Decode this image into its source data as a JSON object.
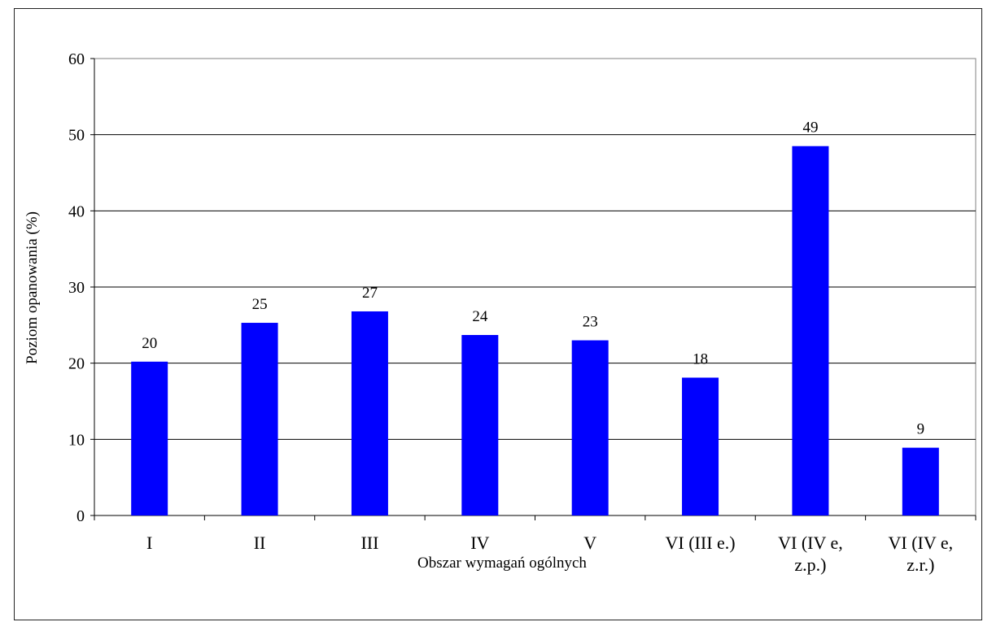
{
  "chart_data": {
    "type": "bar",
    "title": "",
    "xlabel": "Obszar wymagań ogólnych",
    "ylabel": "Poziom opanowania  (%)",
    "ylim": [
      0,
      60
    ],
    "yticks": [
      0,
      10,
      20,
      30,
      40,
      50,
      60
    ],
    "grid": true,
    "categories": [
      [
        "I"
      ],
      [
        "II"
      ],
      [
        "III"
      ],
      [
        "IV"
      ],
      [
        "V"
      ],
      [
        "VI (III e.)"
      ],
      [
        "VI (IV e,",
        "z.p.)"
      ],
      [
        "VI (IV e,",
        "z.r.)"
      ]
    ],
    "values": [
      20.2,
      25.3,
      26.8,
      23.7,
      23.0,
      18.1,
      48.5,
      8.9
    ],
    "data_labels": [
      "20",
      "25",
      "27",
      "24",
      "23",
      "18",
      "49",
      "9"
    ],
    "bar_color": "#0000ff"
  }
}
